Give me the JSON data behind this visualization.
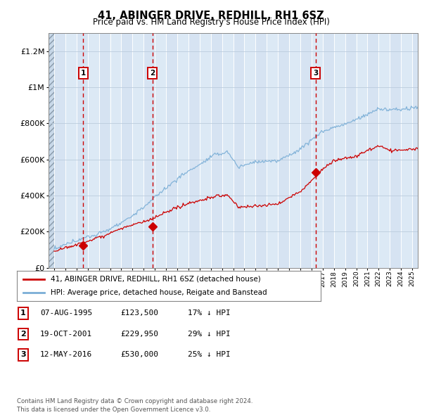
{
  "title": "41, ABINGER DRIVE, REDHILL, RH1 6SZ",
  "subtitle": "Price paid vs. HM Land Registry's House Price Index (HPI)",
  "xlim": [
    1992.5,
    2025.5
  ],
  "ylim": [
    0,
    1300000
  ],
  "yticks": [
    0,
    200000,
    400000,
    600000,
    800000,
    1000000,
    1200000
  ],
  "ytick_labels": [
    "£0",
    "£200K",
    "£400K",
    "£600K",
    "£800K",
    "£1M",
    "£1.2M"
  ],
  "sale_dates": [
    1995.6,
    2001.8,
    2016.37
  ],
  "sale_prices": [
    123500,
    229950,
    530000
  ],
  "sale_labels": [
    "1",
    "2",
    "3"
  ],
  "legend_label_red": "41, ABINGER DRIVE, REDHILL, RH1 6SZ (detached house)",
  "legend_label_blue": "HPI: Average price, detached house, Reigate and Banstead",
  "table_data": [
    [
      "1",
      "07-AUG-1995",
      "£123,500",
      "17% ↓ HPI"
    ],
    [
      "2",
      "19-OCT-2001",
      "£229,950",
      "29% ↓ HPI"
    ],
    [
      "3",
      "12-MAY-2016",
      "£530,000",
      "25% ↓ HPI"
    ]
  ],
  "footer": "Contains HM Land Registry data © Crown copyright and database right 2024.\nThis data is licensed under the Open Government Licence v3.0.",
  "red_color": "#cc0000",
  "blue_color": "#7aaed6",
  "bg_color": "#dce9f5",
  "hatch_bg": "#c8d8e8"
}
